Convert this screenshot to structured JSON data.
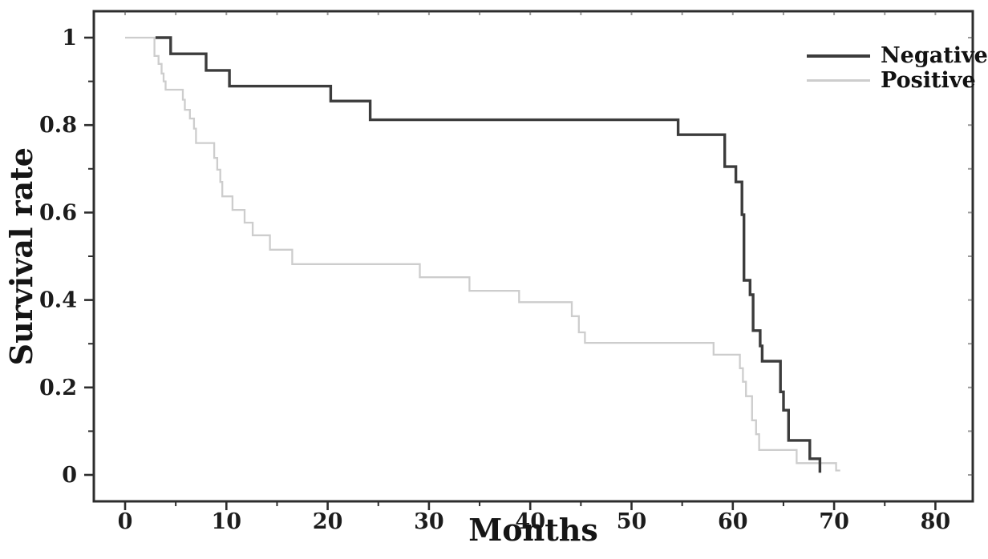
{
  "figure": {
    "background": "#ffffff",
    "frame_color": "#2d2d2d",
    "text_color": "#1c1c1c"
  },
  "chart_data": {
    "type": "line",
    "subtype": "kaplan-meier-step",
    "title": "",
    "xlabel": "Months",
    "ylabel": "Survival rate",
    "xlim": [
      -3,
      84
    ],
    "ylim": [
      -0.06,
      1.06
    ],
    "grid": "off",
    "legend_position": "top-right",
    "x_major_ticks": [
      0,
      10,
      20,
      30,
      40,
      50,
      60,
      70,
      80
    ],
    "x_major_tick_labels": [
      "0",
      "10",
      "20",
      "30",
      "40",
      "50",
      "60",
      "70",
      "80"
    ],
    "x_minor_ticks": [
      5,
      15,
      25,
      35,
      45,
      55,
      65,
      75
    ],
    "y_major_ticks": [
      0,
      0.2,
      0.4,
      0.6,
      0.8,
      1
    ],
    "y_major_tick_labels": [
      "0",
      "0.2",
      "0.4",
      "0.6",
      "0.8",
      "1"
    ],
    "y_minor_ticks": [
      0.1,
      0.3,
      0.5,
      0.7,
      0.9
    ],
    "series": [
      {
        "name": "Negative",
        "color": "#3c3c3c",
        "line_width": 3.4,
        "step": "after",
        "points": [
          [
            3.0,
            1.0
          ],
          [
            4.5,
            0.963
          ],
          [
            8.0,
            0.925
          ],
          [
            10.3,
            0.889
          ],
          [
            20.3,
            0.855
          ],
          [
            24.2,
            0.812
          ],
          [
            54.6,
            0.778
          ],
          [
            59.2,
            0.705
          ],
          [
            60.3,
            0.67
          ],
          [
            60.9,
            0.595
          ],
          [
            61.1,
            0.445
          ],
          [
            61.7,
            0.412
          ],
          [
            62.0,
            0.33
          ],
          [
            62.7,
            0.295
          ],
          [
            62.9,
            0.26
          ],
          [
            64.7,
            0.19
          ],
          [
            65.0,
            0.148
          ],
          [
            65.5,
            0.079
          ],
          [
            67.6,
            0.037
          ],
          [
            68.6,
            0.005
          ]
        ]
      },
      {
        "name": "Positive",
        "color": "#cdcdcd",
        "line_width": 2.3,
        "step": "after",
        "points": [
          [
            0.0,
            1.0
          ],
          [
            2.9,
            0.958
          ],
          [
            3.3,
            0.94
          ],
          [
            3.6,
            0.918
          ],
          [
            3.8,
            0.9
          ],
          [
            4.0,
            0.881
          ],
          [
            5.7,
            0.858
          ],
          [
            5.9,
            0.835
          ],
          [
            6.4,
            0.815
          ],
          [
            6.8,
            0.792
          ],
          [
            7.0,
            0.759
          ],
          [
            8.8,
            0.725
          ],
          [
            9.1,
            0.698
          ],
          [
            9.4,
            0.67
          ],
          [
            9.6,
            0.637
          ],
          [
            10.6,
            0.606
          ],
          [
            11.8,
            0.577
          ],
          [
            12.6,
            0.548
          ],
          [
            14.3,
            0.515
          ],
          [
            16.5,
            0.482
          ],
          [
            29.1,
            0.452
          ],
          [
            34.0,
            0.421
          ],
          [
            38.9,
            0.395
          ],
          [
            44.1,
            0.363
          ],
          [
            44.8,
            0.326
          ],
          [
            45.4,
            0.302
          ],
          [
            58.1,
            0.275
          ],
          [
            60.7,
            0.244
          ],
          [
            61.0,
            0.213
          ],
          [
            61.3,
            0.18
          ],
          [
            61.9,
            0.125
          ],
          [
            62.3,
            0.093
          ],
          [
            62.6,
            0.057
          ],
          [
            66.3,
            0.027
          ],
          [
            70.2,
            0.01
          ],
          [
            70.6,
            0.01
          ]
        ]
      }
    ]
  }
}
